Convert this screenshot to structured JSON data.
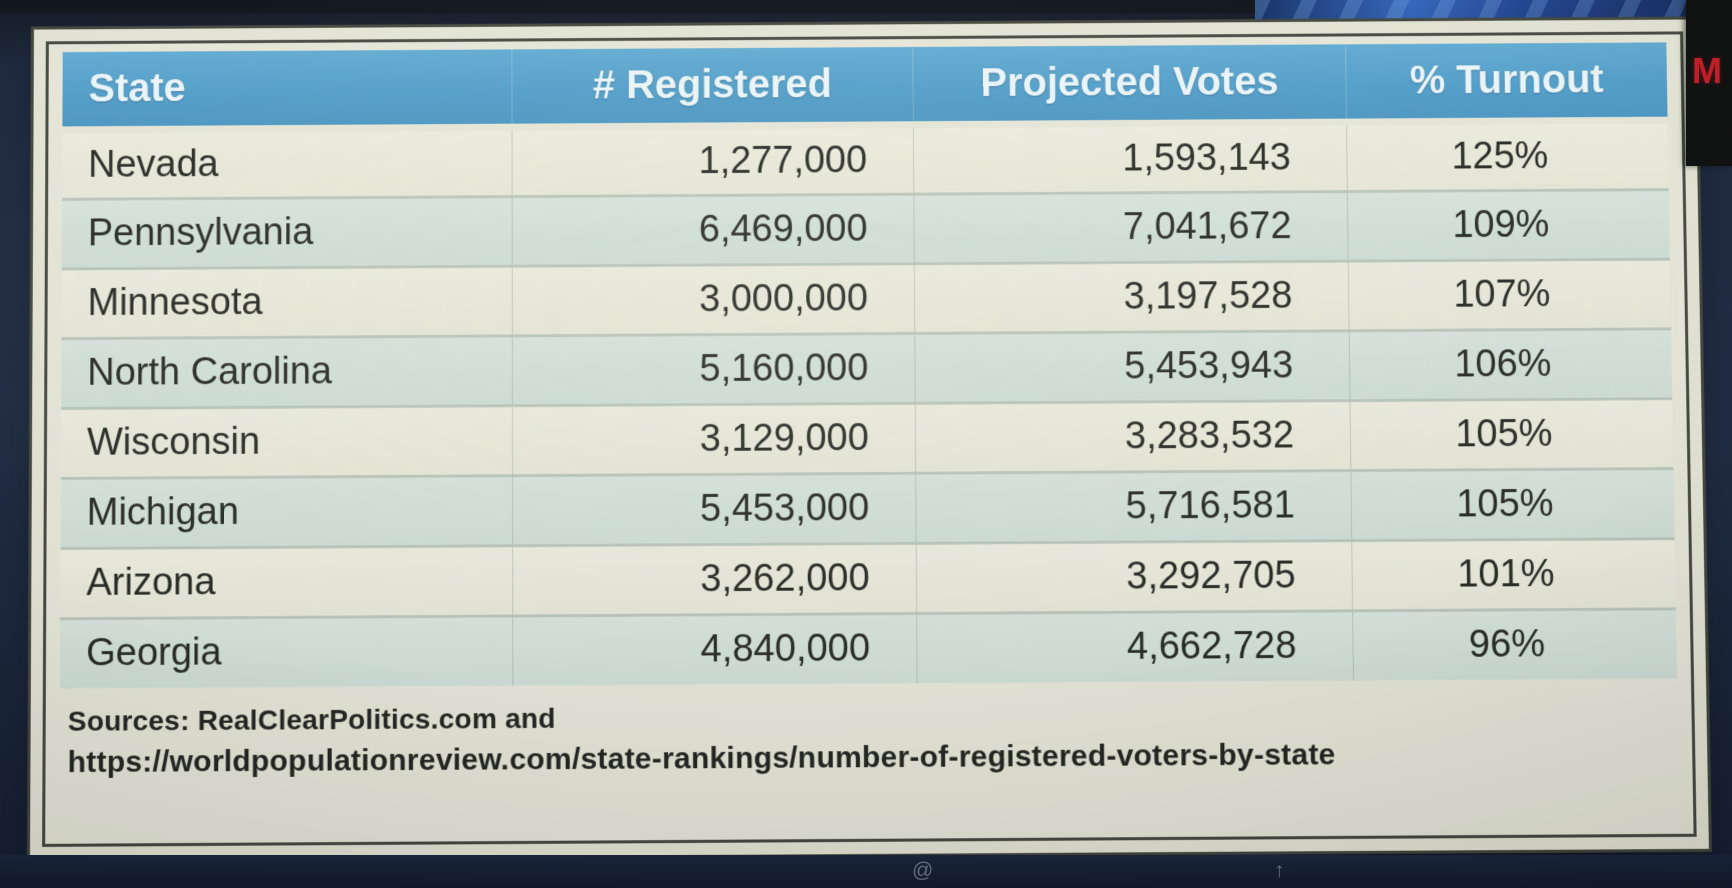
{
  "backdrop": {
    "logo_letter": "M",
    "logo_color": "#c2151f"
  },
  "taskbar": {
    "glyphs": [
      "@",
      "↑"
    ]
  },
  "table": {
    "headers": [
      "State",
      "# Registered",
      "Projected Votes",
      "% Turnout"
    ],
    "rows": [
      {
        "state": "Nevada",
        "registered": "1,277,000",
        "projected": "1,593,143",
        "turnout": "125%"
      },
      {
        "state": "Pennsylvania",
        "registered": "6,469,000",
        "projected": "7,041,672",
        "turnout": "109%"
      },
      {
        "state": "Minnesota",
        "registered": "3,000,000",
        "projected": "3,197,528",
        "turnout": "107%"
      },
      {
        "state": "North Carolina",
        "registered": "5,160,000",
        "projected": "5,453,943",
        "turnout": "106%"
      },
      {
        "state": "Wisconsin",
        "registered": "3,129,000",
        "projected": "3,283,532",
        "turnout": "105%"
      },
      {
        "state": "Michigan",
        "registered": "5,453,000",
        "projected": "5,716,581",
        "turnout": "105%"
      },
      {
        "state": "Arizona",
        "registered": "3,262,000",
        "projected": "3,292,705",
        "turnout": "101%"
      },
      {
        "state": "Georgia",
        "registered": "4,840,000",
        "projected": "4,662,728",
        "turnout": "96%"
      }
    ],
    "sources_line1": "Sources: RealClearPolitics.com and",
    "sources_line2": "https://worldpopulationreview.com/state-rankings/number-of-registered-voters-by-state"
  },
  "colors": {
    "header_bg": "#459fd4",
    "header_text": "#eef8fd",
    "row_light": "#edecdc",
    "row_teal": "#d3e1da",
    "card_bg": "#e9e8d9",
    "body_text": "#22251f",
    "backdrop_navy": "#15203a"
  },
  "chart_data": {
    "type": "table",
    "title": "Projected votes vs registered voters by state",
    "columns": [
      "State",
      "# Registered",
      "Projected Votes",
      "% Turnout"
    ],
    "rows": [
      [
        "Nevada",
        1277000,
        1593143,
        "125%"
      ],
      [
        "Pennsylvania",
        6469000,
        7041672,
        "109%"
      ],
      [
        "Minnesota",
        3000000,
        3197528,
        "107%"
      ],
      [
        "North Carolina",
        5160000,
        5453943,
        "106%"
      ],
      [
        "Wisconsin",
        3129000,
        3283532,
        "105%"
      ],
      [
        "Michigan",
        5453000,
        5716581,
        "105%"
      ],
      [
        "Arizona",
        3262000,
        3292705,
        "101%"
      ],
      [
        "Georgia",
        4840000,
        4662728,
        "96%"
      ]
    ],
    "notes": "Sources: RealClearPolitics.com and https://worldpopulationreview.com/state-rankings/number-of-registered-voters-by-state"
  }
}
